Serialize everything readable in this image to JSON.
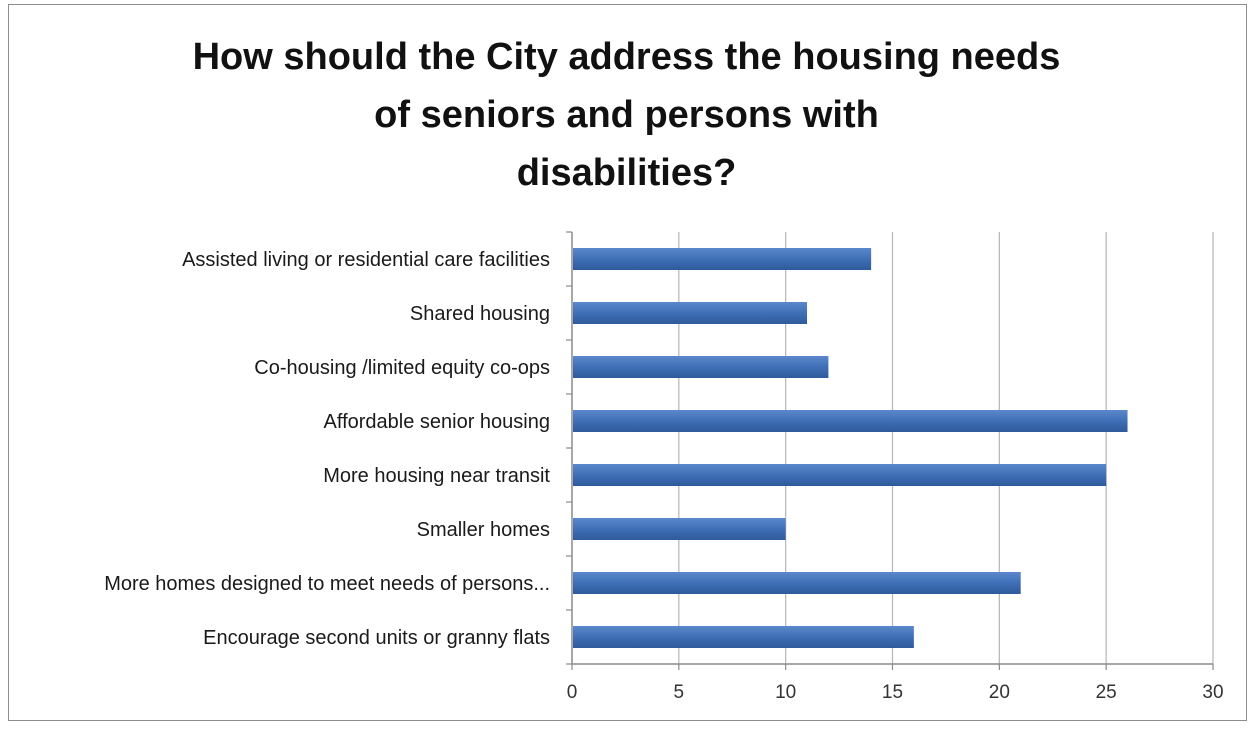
{
  "chart_data": {
    "type": "bar",
    "orientation": "horizontal",
    "title_lines": [
      "How should the City address the housing needs",
      "of seniors and persons with",
      "disabilities?"
    ],
    "categories": [
      "Assisted living or residential care facilities",
      "Shared housing",
      "Co-housing /limited equity co-ops",
      "Affordable senior housing",
      "More housing near transit",
      "Smaller homes",
      "More homes designed to meet needs of persons...",
      "Encourage second units or granny flats"
    ],
    "values": [
      14,
      11,
      12,
      26,
      25,
      10,
      21,
      16
    ],
    "xlim": [
      0,
      30
    ],
    "xticks": [
      "0",
      "5",
      "10",
      "15",
      "20",
      "25",
      "30"
    ],
    "grid": true,
    "bar_color": "#3f6fb6",
    "legend": false
  }
}
